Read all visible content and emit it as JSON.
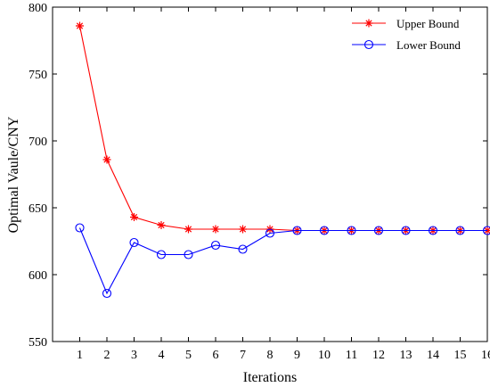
{
  "chart_data": {
    "type": "line",
    "xlabel": "Iterations",
    "ylabel": "Optimal Vaule/CNY",
    "xlim": [
      0,
      16
    ],
    "ylim": [
      550,
      800
    ],
    "x": [
      1,
      2,
      3,
      4,
      5,
      6,
      7,
      8,
      9,
      10,
      11,
      12,
      13,
      14,
      15,
      16
    ],
    "xticks": [
      "1",
      "2",
      "3",
      "4",
      "5",
      "6",
      "7",
      "8",
      "9",
      "10",
      "11",
      "12",
      "13",
      "14",
      "15",
      "16"
    ],
    "yticks": [
      550,
      600,
      650,
      700,
      750,
      800
    ],
    "grid": false,
    "legend_position": "top-right",
    "series": [
      {
        "name": "Upper Bound",
        "color": "#ff0000",
        "marker": "asterisk",
        "values": [
          786,
          686,
          643,
          637,
          634,
          634,
          634,
          634,
          633,
          633,
          633,
          633,
          633,
          633,
          633,
          633
        ]
      },
      {
        "name": "Lower Bound",
        "color": "#0000ff",
        "marker": "circle",
        "values": [
          635,
          586,
          624,
          615,
          615,
          622,
          619,
          631,
          633,
          633,
          633,
          633,
          633,
          633,
          633,
          633
        ]
      }
    ]
  }
}
